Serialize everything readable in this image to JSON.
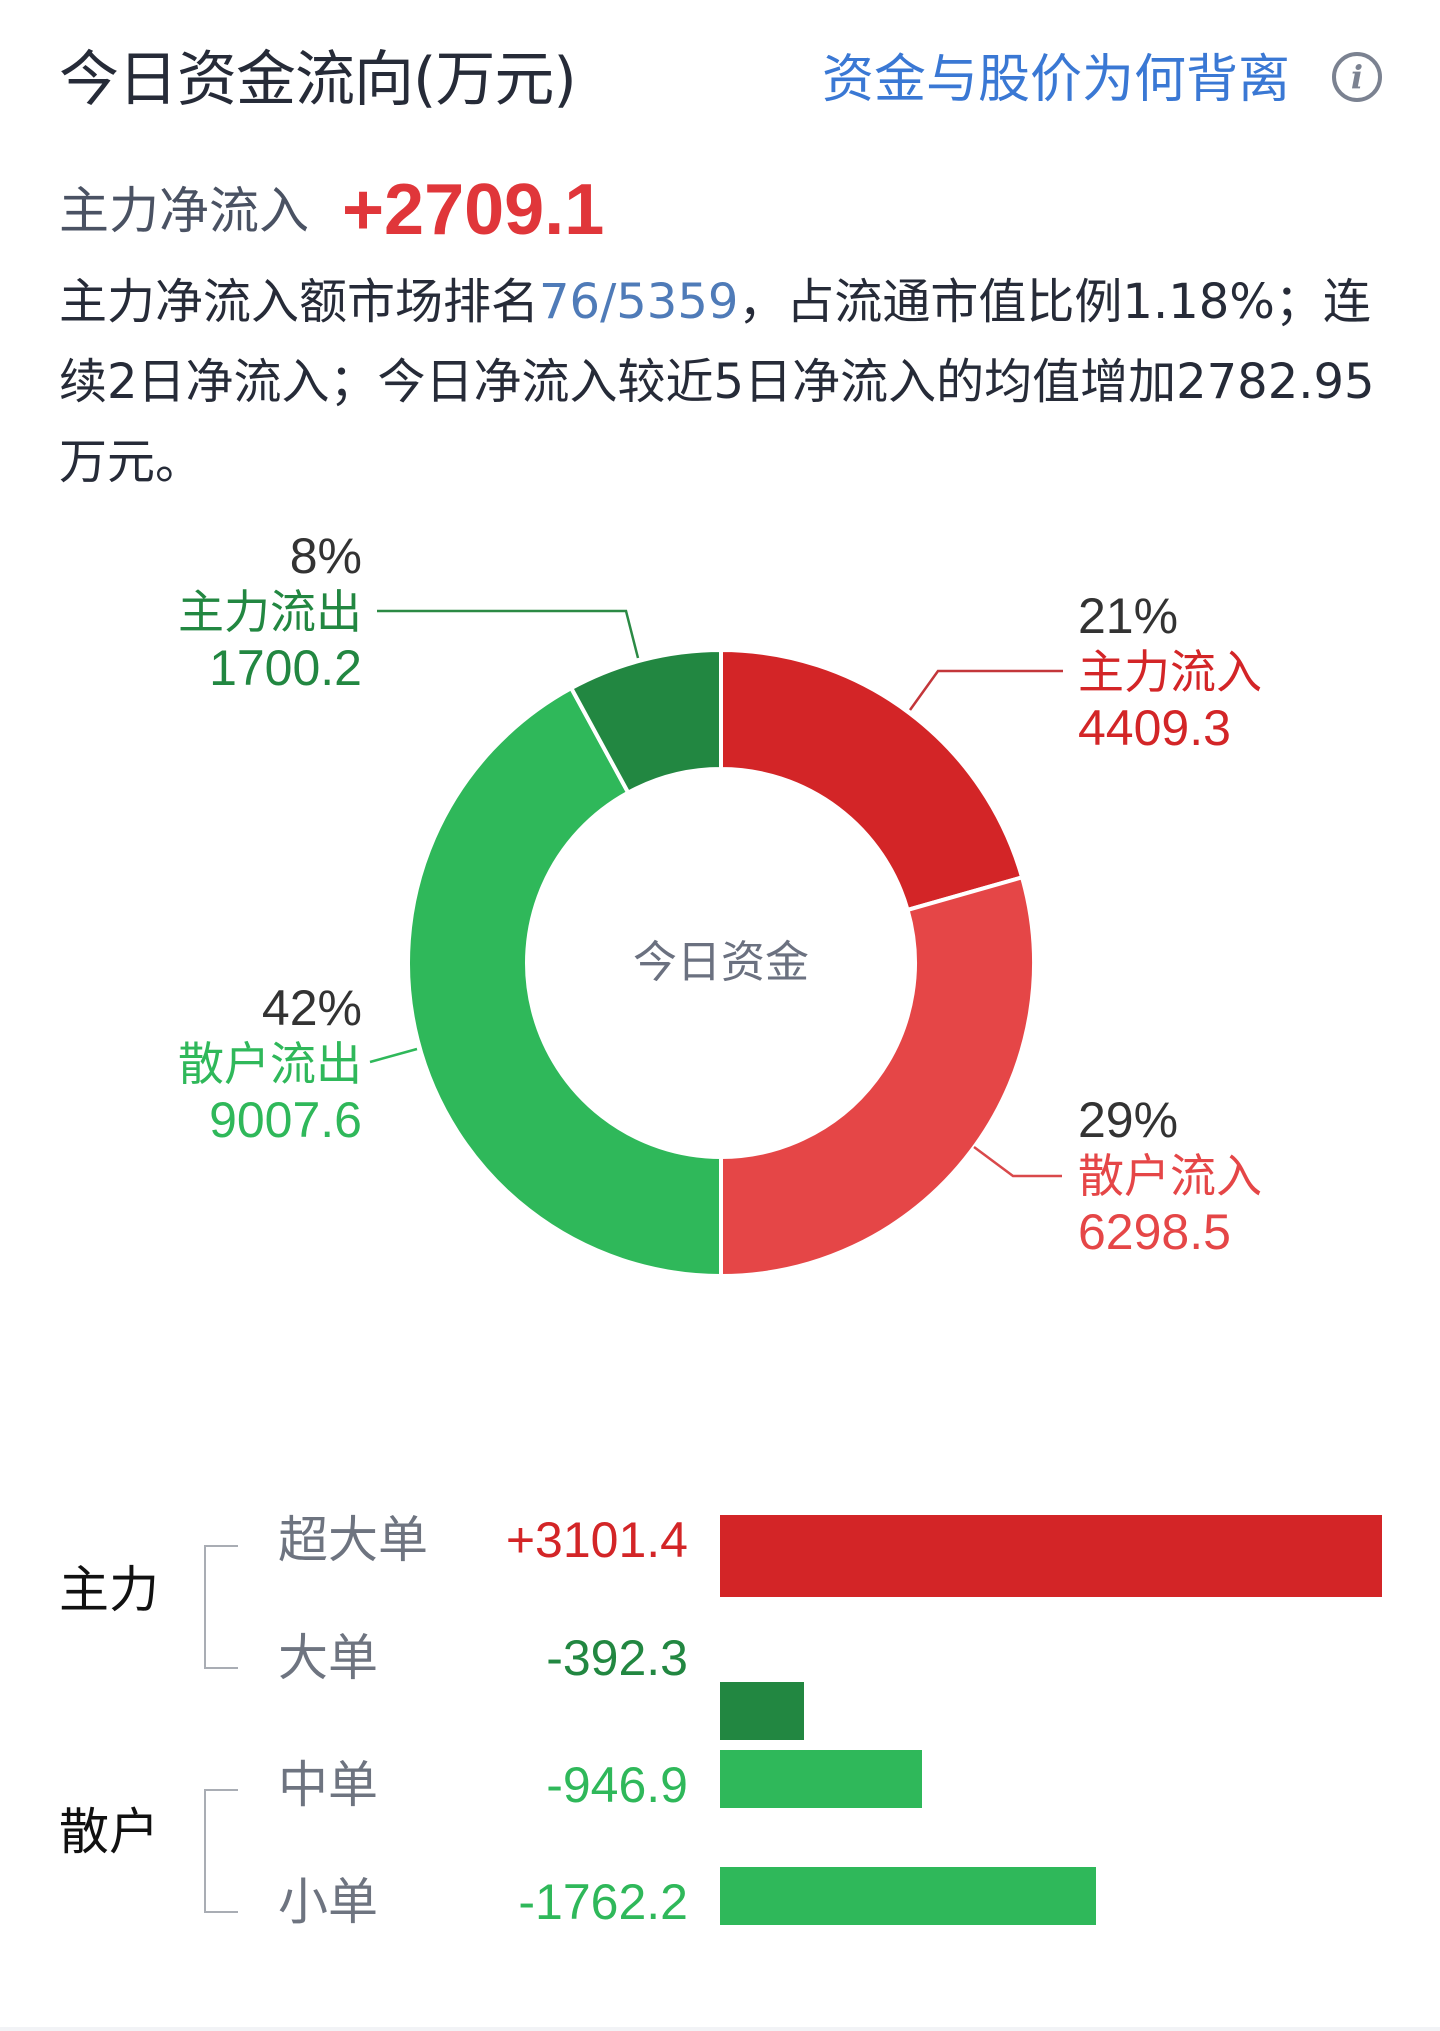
{
  "header": {
    "title": "今日资金流向(万元)",
    "divergence_link": "资金与股价为何背离",
    "info_icon": "info-icon"
  },
  "net_inflow": {
    "label": "主力净流入",
    "value": "+2709.1",
    "color": "#e0363a"
  },
  "summary": {
    "part1": "主力净流入额市场排名",
    "rank": "76/5359",
    "part2": "，占流通市值比例1.18%；连续2日净流入；今日净流入较近5日净流入的均值增加2782.95万元。"
  },
  "chart_data": [
    {
      "type": "pie",
      "title": "今日资金",
      "donut": true,
      "center_label": "今日资金",
      "unit": "万元",
      "categories": [
        "主力流入",
        "散户流入",
        "散户流出",
        "主力流出"
      ],
      "values": [
        4409.3,
        6298.5,
        9007.6,
        1700.2
      ],
      "percents": [
        "21%",
        "29%",
        "42%",
        "8%"
      ],
      "colors": [
        "#d32527",
        "#e54647",
        "#2fb85a",
        "#228741"
      ],
      "label_colors": [
        "#d32527",
        "#e54647",
        "#2fb85a",
        "#228741"
      ],
      "start_angle": "top, clockwise"
    },
    {
      "type": "bar",
      "orientation": "horizontal",
      "groups": [
        {
          "name": "主力",
          "items": [
            "超大单",
            "大单"
          ]
        },
        {
          "name": "散户",
          "items": [
            "中单",
            "小单"
          ]
        }
      ],
      "categories": [
        "超大单",
        "大单",
        "中单",
        "小单"
      ],
      "values": [
        3101.4,
        -392.3,
        -946.9,
        -1762.2
      ],
      "value_labels": [
        "+3101.4",
        "-392.3",
        "-946.9",
        "-1762.2"
      ],
      "colors": [
        "#d32527",
        "#228741",
        "#2fb85a",
        "#2fb85a"
      ]
    }
  ],
  "donut_labels": [
    {
      "pct": "21%",
      "name": "主力流入",
      "value": "4409.3",
      "color": "#d32527"
    },
    {
      "pct": "29%",
      "name": "散户流入",
      "value": "6298.5",
      "color": "#e54647"
    },
    {
      "pct": "42%",
      "name": "散户流出",
      "value": "9007.6",
      "color": "#2fb85a"
    },
    {
      "pct": "8%",
      "name": "主力流出",
      "value": "1700.2",
      "color": "#228741"
    }
  ],
  "breakdown": {
    "groups": [
      {
        "label": "主力"
      },
      {
        "label": "散户"
      }
    ],
    "rows": [
      {
        "label": "超大单",
        "value": "+3101.4",
        "color": "#d32527"
      },
      {
        "label": "大单",
        "value": "-392.3",
        "color": "#228741"
      },
      {
        "label": "中单",
        "value": "-946.9",
        "color": "#2fb85a"
      },
      {
        "label": "小单",
        "value": "-1762.2",
        "color": "#2fb85a"
      }
    ]
  }
}
